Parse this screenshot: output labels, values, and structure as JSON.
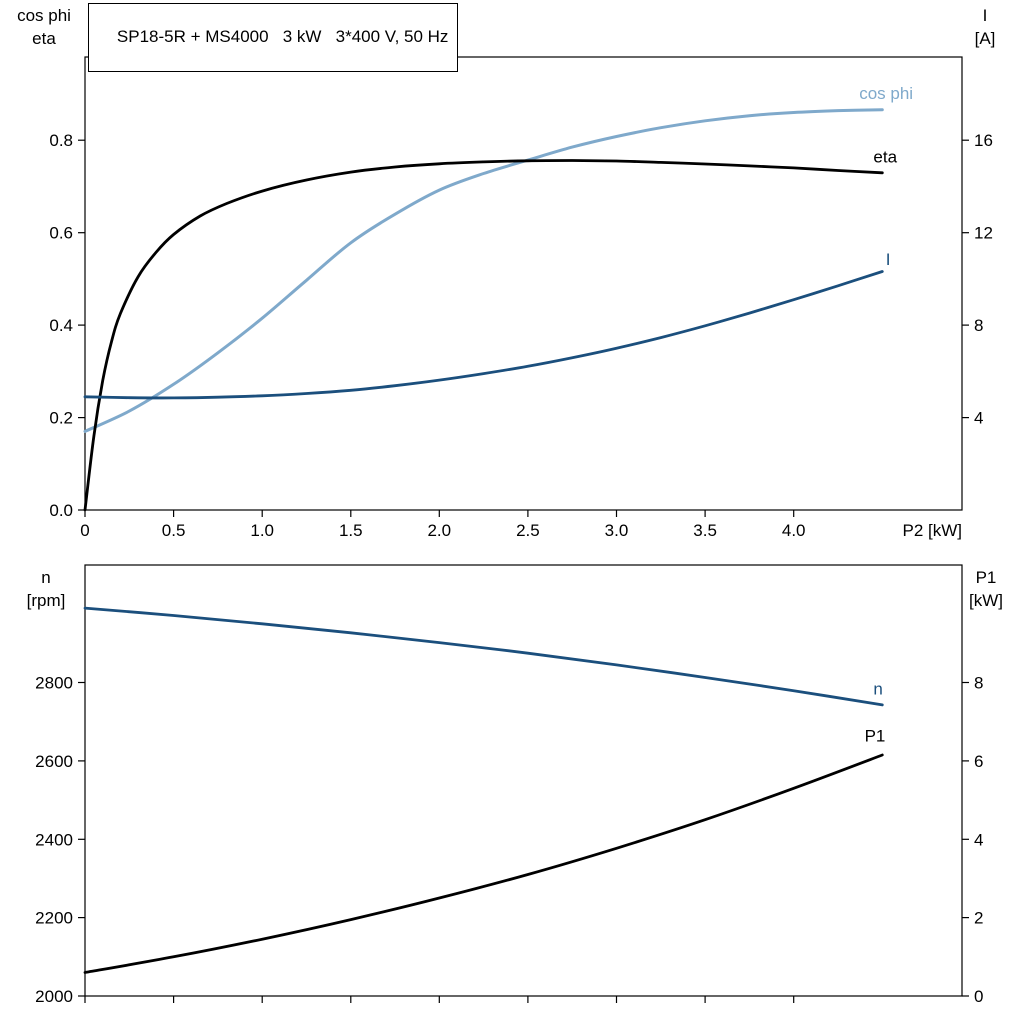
{
  "title": "SP18-5R + MS4000   3 kW   3*400 V, 50 Hz",
  "colors": {
    "dark_blue": "#1b4f7d",
    "light_blue": "#7fa9cb",
    "black": "#000000",
    "background": "#ffffff"
  },
  "chart_data": [
    {
      "type": "line",
      "grid": false,
      "x_axis": {
        "label": "P2 [kW]",
        "range": [
          0,
          4.95
        ],
        "tick_values": [
          0,
          0.5,
          1,
          1.5,
          2,
          2.5,
          3,
          3.5,
          4
        ],
        "tick_labels": [
          "0",
          "0.5",
          "1.0",
          "1.5",
          "2.0",
          "2.5",
          "3.0",
          "3.5",
          "4.0"
        ]
      },
      "left_axis": {
        "lines": [
          "cos phi",
          "eta"
        ],
        "range": [
          0,
          0.98
        ],
        "tick_values": [
          0,
          0.2,
          0.4,
          0.6,
          0.8
        ],
        "tick_labels": [
          "0.0",
          "0.2",
          "0.4",
          "0.6",
          "0.8"
        ]
      },
      "right_axis": {
        "lines": [
          "I",
          "[A]"
        ],
        "range": [
          0,
          19.6
        ],
        "tick_values": [
          4,
          8,
          12,
          16
        ],
        "tick_labels": [
          "4",
          "8",
          "12",
          "16"
        ]
      },
      "series": [
        {
          "name": "cos phi",
          "axis": "left",
          "color": "#7fa9cb",
          "width": 3,
          "label": {
            "text": "cos phi",
            "x": 4.37,
            "y": 0.889
          },
          "points": [
            [
              0,
              0.17
            ],
            [
              0.25,
              0.214
            ],
            [
              0.5,
              0.272
            ],
            [
              0.75,
              0.34
            ],
            [
              1,
              0.415
            ],
            [
              1.25,
              0.497
            ],
            [
              1.5,
              0.578
            ],
            [
              1.75,
              0.64
            ],
            [
              2,
              0.692
            ],
            [
              2.25,
              0.728
            ],
            [
              2.5,
              0.757
            ],
            [
              2.75,
              0.785
            ],
            [
              3,
              0.808
            ],
            [
              3.25,
              0.827
            ],
            [
              3.5,
              0.842
            ],
            [
              3.75,
              0.853
            ],
            [
              4,
              0.86
            ],
            [
              4.25,
              0.864
            ],
            [
              4.5,
              0.866
            ]
          ]
        },
        {
          "name": "eta",
          "axis": "left",
          "color": "#000000",
          "width": 2.8,
          "label": {
            "text": "eta",
            "x": 4.45,
            "y": 0.752
          },
          "points": [
            [
              0,
              0
            ],
            [
              0.05,
              0.16
            ],
            [
              0.1,
              0.28
            ],
            [
              0.15,
              0.365
            ],
            [
              0.2,
              0.425
            ],
            [
              0.3,
              0.505
            ],
            [
              0.4,
              0.557
            ],
            [
              0.5,
              0.596
            ],
            [
              0.65,
              0.636
            ],
            [
              0.8,
              0.663
            ],
            [
              1,
              0.69
            ],
            [
              1.25,
              0.714
            ],
            [
              1.5,
              0.731
            ],
            [
              1.75,
              0.742
            ],
            [
              2,
              0.749
            ],
            [
              2.25,
              0.753
            ],
            [
              2.5,
              0.7555
            ],
            [
              2.75,
              0.756
            ],
            [
              3,
              0.755
            ],
            [
              3.25,
              0.752
            ],
            [
              3.5,
              0.7485
            ],
            [
              3.75,
              0.7445
            ],
            [
              4,
              0.74
            ],
            [
              4.25,
              0.7345
            ],
            [
              4.5,
              0.7295
            ]
          ]
        },
        {
          "name": "I",
          "axis": "right",
          "color": "#1b4f7d",
          "width": 2.8,
          "label": {
            "text": "I",
            "x": 4.52,
            "y": 10.6
          },
          "points": [
            [
              0,
              4.9
            ],
            [
              0.25,
              4.86
            ],
            [
              0.5,
              4.85
            ],
            [
              0.75,
              4.88
            ],
            [
              1,
              4.94
            ],
            [
              1.25,
              5.04
            ],
            [
              1.5,
              5.18
            ],
            [
              1.75,
              5.38
            ],
            [
              2,
              5.62
            ],
            [
              2.25,
              5.9
            ],
            [
              2.5,
              6.22
            ],
            [
              2.75,
              6.59
            ],
            [
              3,
              7
            ],
            [
              3.25,
              7.46
            ],
            [
              3.5,
              7.97
            ],
            [
              3.75,
              8.52
            ],
            [
              4,
              9.1
            ],
            [
              4.25,
              9.7
            ],
            [
              4.5,
              10.32
            ]
          ]
        }
      ]
    },
    {
      "type": "line",
      "grid": false,
      "x_axis": {
        "label": "",
        "range": [
          0,
          4.95
        ],
        "tick_values": [
          0,
          0.5,
          1,
          1.5,
          2,
          2.5,
          3,
          3.5,
          4
        ],
        "tick_labels": null
      },
      "left_axis": {
        "lines": [
          "n",
          "[rpm]"
        ],
        "range": [
          2000,
          3100
        ],
        "tick_values": [
          2000,
          2200,
          2400,
          2600,
          2800
        ],
        "tick_labels": [
          "2000",
          "2200",
          "2400",
          "2600",
          "2800"
        ]
      },
      "right_axis": {
        "lines": [
          "P1",
          "[kW]"
        ],
        "range": [
          0,
          11
        ],
        "tick_values": [
          0,
          2,
          4,
          6,
          8
        ],
        "tick_labels": [
          "0",
          "2",
          "4",
          "6",
          "8"
        ]
      },
      "series": [
        {
          "name": "n",
          "axis": "left",
          "color": "#1b4f7d",
          "width": 2.8,
          "label": {
            "text": "n",
            "x": 4.45,
            "y": 2770
          },
          "points": [
            [
              0,
              2990
            ],
            [
              0.5,
              2971
            ],
            [
              1,
              2950
            ],
            [
              1.5,
              2927
            ],
            [
              2,
              2902
            ],
            [
              2.5,
              2875
            ],
            [
              3,
              2845
            ],
            [
              3.5,
              2813
            ],
            [
              4,
              2779
            ],
            [
              4.5,
              2743
            ]
          ]
        },
        {
          "name": "P1",
          "axis": "right",
          "color": "#000000",
          "width": 2.8,
          "label": {
            "text": "P1",
            "x": 4.4,
            "y": 6.5
          },
          "points": [
            [
              0,
              0.6
            ],
            [
              0.5,
              1.0
            ],
            [
              1,
              1.45
            ],
            [
              1.5,
              1.95
            ],
            [
              2,
              2.5
            ],
            [
              2.5,
              3.1
            ],
            [
              3,
              3.77
            ],
            [
              3.5,
              4.5
            ],
            [
              4,
              5.3
            ],
            [
              4.5,
              6.15
            ]
          ]
        }
      ]
    }
  ]
}
